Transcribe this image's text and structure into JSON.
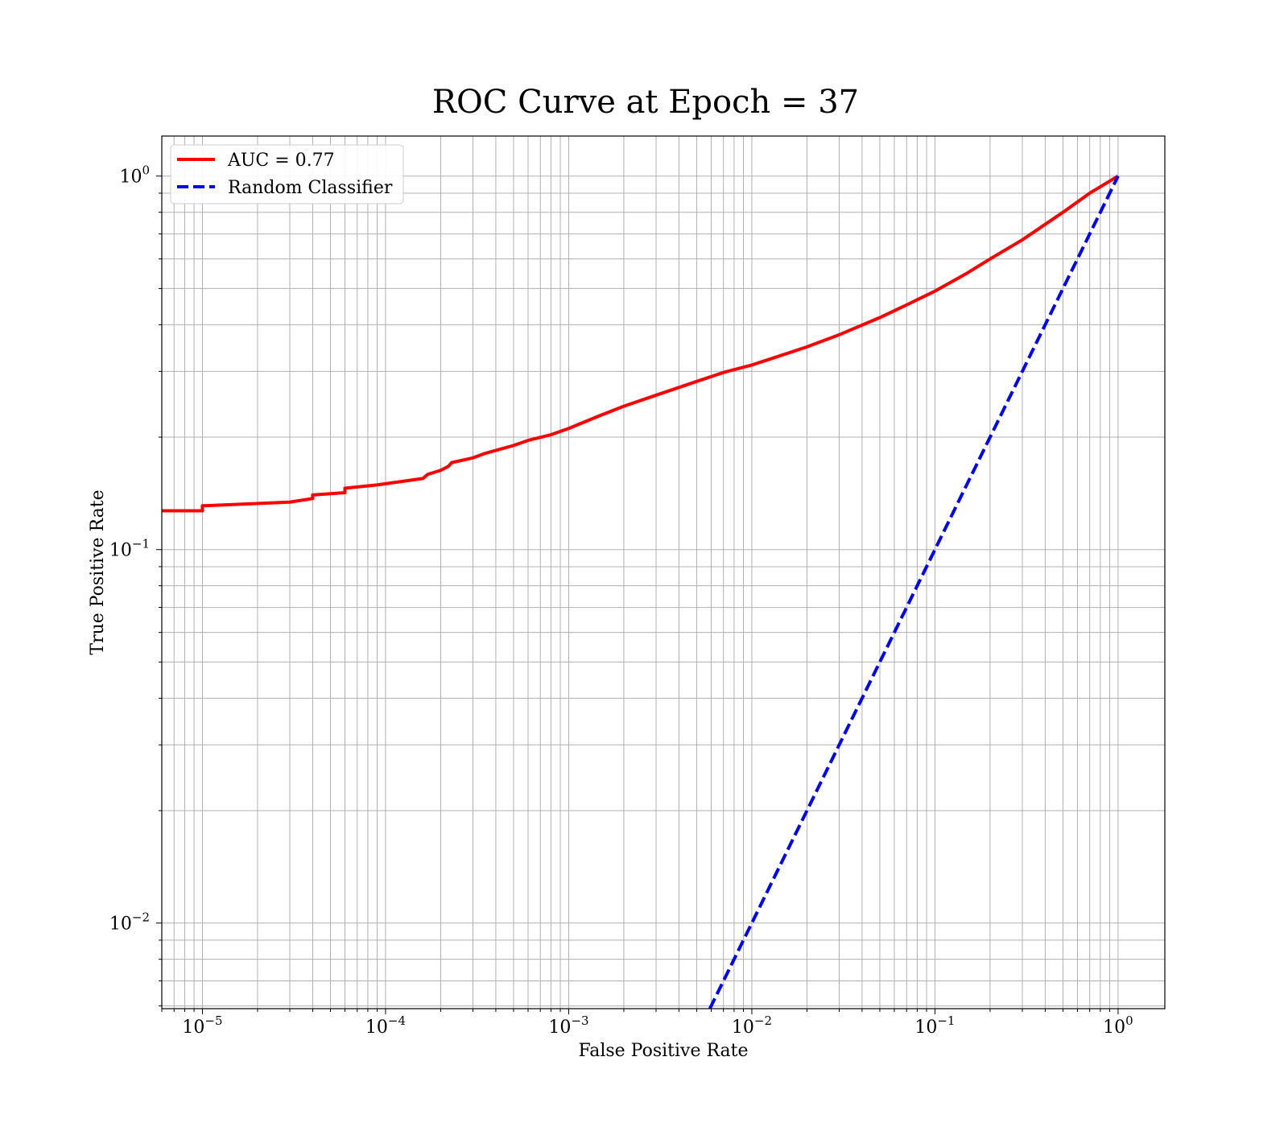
{
  "chart_data": {
    "type": "line",
    "title": "ROC Curve at Epoch = 37",
    "xlabel": "False Positive Rate",
    "ylabel": "True Positive Rate",
    "xscale": "log",
    "yscale": "log",
    "xlim": [
      6e-06,
      1.8
    ],
    "ylim": [
      0.0059,
      1.28
    ],
    "grid": true,
    "legend_position": "upper-left",
    "x_ticks": [
      {
        "value": 1e-05,
        "base": "10",
        "exp": "−5"
      },
      {
        "value": 0.0001,
        "base": "10",
        "exp": "−4"
      },
      {
        "value": 0.001,
        "base": "10",
        "exp": "−3"
      },
      {
        "value": 0.01,
        "base": "10",
        "exp": "−2"
      },
      {
        "value": 0.1,
        "base": "10",
        "exp": "−1"
      },
      {
        "value": 1,
        "base": "10",
        "exp": "0"
      }
    ],
    "y_ticks": [
      {
        "value": 0.01,
        "base": "10",
        "exp": "−2"
      },
      {
        "value": 0.1,
        "base": "10",
        "exp": "−1"
      },
      {
        "value": 1,
        "base": "10",
        "exp": "0"
      }
    ],
    "series": [
      {
        "name": "AUC = 0.77",
        "color": "#ff0000",
        "style": "solid",
        "x": [
          6e-06,
          1e-05,
          1e-05,
          3e-05,
          4e-05,
          4e-05,
          6e-05,
          6e-05,
          9e-05,
          0.00012,
          0.00016,
          0.00017,
          0.0002,
          0.00022,
          0.00023,
          0.0003,
          0.00035,
          0.0005,
          0.0006,
          0.0008,
          0.001,
          0.0015,
          0.002,
          0.003,
          0.005,
          0.007,
          0.01,
          0.015,
          0.02,
          0.03,
          0.05,
          0.07,
          0.1,
          0.15,
          0.2,
          0.3,
          0.5,
          0.7,
          1.0
        ],
        "y": [
          0.127,
          0.127,
          0.131,
          0.134,
          0.137,
          0.14,
          0.142,
          0.146,
          0.149,
          0.152,
          0.155,
          0.159,
          0.163,
          0.167,
          0.171,
          0.176,
          0.181,
          0.19,
          0.196,
          0.203,
          0.211,
          0.229,
          0.242,
          0.259,
          0.282,
          0.298,
          0.312,
          0.333,
          0.349,
          0.376,
          0.418,
          0.452,
          0.492,
          0.55,
          0.6,
          0.675,
          0.8,
          0.9,
          1.0
        ]
      },
      {
        "name": "Random Classifier",
        "color": "#0000ff",
        "style": "dashed",
        "x": [
          0.0059,
          1.0
        ],
        "y": [
          0.0059,
          1.0
        ]
      }
    ]
  }
}
